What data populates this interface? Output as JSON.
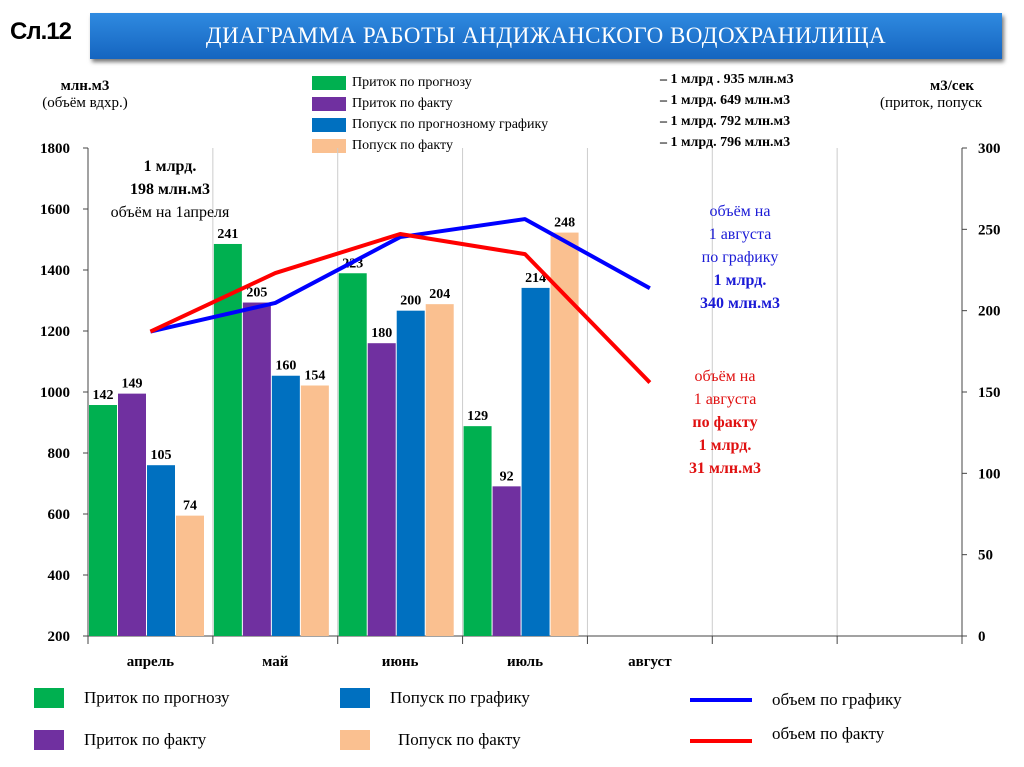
{
  "slide_number": "Сл.12",
  "title": "ДИАГРАММА  РАБОТЫ  АНДИЖАНСКОГО  ВОДОХРАНИЛИЩА",
  "left_axis": {
    "unit": "млн.м3",
    "subtitle": "(объём вдхр.)"
  },
  "right_axis": {
    "unit": "м3/сек",
    "subtitle": "(приток, попуск"
  },
  "top_legend": [
    {
      "label": "Приток по прогнозу",
      "value": "– 1 млрд . 935  млн.м3",
      "color": "#00b050"
    },
    {
      "label": "Приток по факту",
      "value": "– 1 млрд.  649 млн.м3",
      "color": "#7030a0"
    },
    {
      "label": "Попуск по прогнозному  графику",
      "value": "– 1 млрд.  792 млн.м3",
      "color": "#0070c0"
    },
    {
      "label": "Попуск по факту",
      "value": "– 1 млрд.  796 млн.м3",
      "color": "#fac090"
    }
  ],
  "start_note": [
    "1 млрд.",
    "198 млн.м3",
    "объём на 1апреля"
  ],
  "plan_note": [
    "объём на",
    "1 августа",
    "по графику",
    "1 млрд.",
    "340 млн.м3"
  ],
  "fact_note": [
    "объём на",
    "1 августа",
    "по факту",
    "1 млрд.",
    "31 млн.м3"
  ],
  "bottom_legend": [
    {
      "label": "Приток по прогнозу",
      "color": "#00b050"
    },
    {
      "label": "Попуск по графику",
      "color": "#0070c0"
    },
    {
      "label": "объем по графику",
      "color": "#0000ff"
    },
    {
      "label": "Приток по факту",
      "color": "#7030a0"
    },
    {
      "label": "Попуск по факту",
      "color": "#fac090"
    },
    {
      "label": "объем по факту",
      "color": "#ff0000"
    }
  ],
  "chart_data": {
    "type": "bar+line",
    "title": "ДИАГРАММА  РАБОТЫ  АНДИЖАНСКОГО  ВОДОХРАНИЛИЩА",
    "categories": [
      "апрель",
      "май",
      "июнь",
      "июль",
      "август",
      "",
      ""
    ],
    "left_ylim": [
      200,
      1800
    ],
    "left_ticks": [
      200,
      400,
      600,
      800,
      1000,
      1200,
      1400,
      1600,
      1800
    ],
    "right_ylim": [
      0,
      300
    ],
    "right_ticks": [
      0,
      50,
      100,
      150,
      200,
      250,
      300
    ],
    "bar_series": [
      {
        "name": "Приток по прогнозу",
        "color": "#00b050",
        "values": [
          142,
          241,
          223,
          129
        ]
      },
      {
        "name": "Приток по факту",
        "color": "#7030a0",
        "values": [
          149,
          205,
          180,
          92
        ]
      },
      {
        "name": "Попуск по графику",
        "color": "#0070c0",
        "values": [
          105,
          160,
          200,
          214
        ]
      },
      {
        "name": "Попуск по факту",
        "color": "#fac090",
        "values": [
          74,
          154,
          204,
          248
        ]
      }
    ],
    "line_series": [
      {
        "name": "объем по графику",
        "color": "#0000ff",
        "values": [
          1198,
          1292,
          1508,
          1567,
          1340
        ]
      },
      {
        "name": "объем по факту",
        "color": "#ff0000",
        "values": [
          1198,
          1390,
          1518,
          1452,
          1031
        ]
      }
    ]
  }
}
